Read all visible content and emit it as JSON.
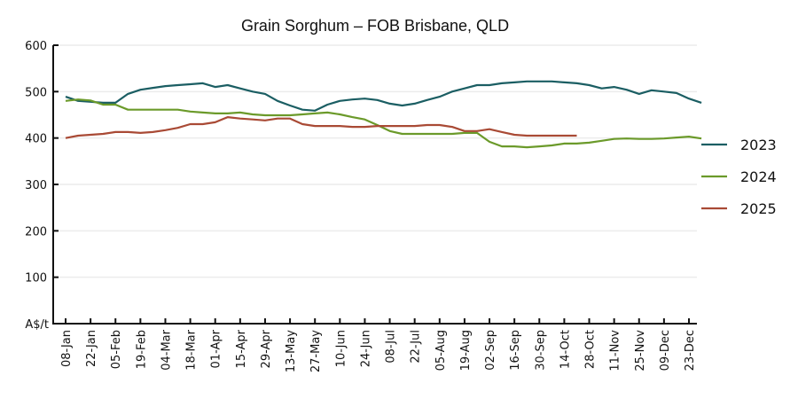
{
  "chart_data": {
    "type": "line",
    "title": "Grain Sorghum – FOB Brisbane, QLD",
    "ylabel": "A$/t",
    "xlabel": "",
    "ylim": [
      0,
      600
    ],
    "yticks": [
      100,
      200,
      300,
      400,
      500,
      600
    ],
    "ytick_labels": [
      "100",
      "200",
      "300",
      "400",
      "500",
      "600"
    ],
    "xtick_labels": [
      "08-Jan",
      "22-Jan",
      "05-Feb",
      "19-Feb",
      "04-Mar",
      "18-Mar",
      "01-Apr",
      "15-Apr",
      "29-Apr",
      "13-May",
      "27-May",
      "10-Jun",
      "24-Jun",
      "08-Jul",
      "22-Jul",
      "05-Aug",
      "19-Aug",
      "02-Sep",
      "16-Sep",
      "30-Sep",
      "14-Oct",
      "28-Oct",
      "11-Nov",
      "25-Nov",
      "09-Dec",
      "23-Dec"
    ],
    "x_unit": "week index from 08-Jan",
    "grid": true,
    "legend_position": "right",
    "series": [
      {
        "name": "2023",
        "color": "#1b5e63",
        "values": [
          489,
          480,
          478,
          476,
          476,
          495,
          504,
          508,
          512,
          514,
          516,
          518,
          510,
          514,
          507,
          500,
          495,
          480,
          470,
          461,
          459,
          472,
          480,
          483,
          485,
          482,
          474,
          470,
          474,
          482,
          489,
          500,
          507,
          514,
          514,
          518,
          520,
          522,
          522,
          522,
          520,
          518,
          514,
          507,
          510,
          504,
          495,
          503,
          500,
          497,
          485,
          476
        ]
      },
      {
        "name": "2024",
        "color": "#6b9a2a",
        "values": [
          480,
          483,
          481,
          472,
          472,
          461,
          461,
          461,
          461,
          461,
          457,
          455,
          453,
          453,
          455,
          451,
          449,
          449,
          449,
          451,
          453,
          455,
          451,
          445,
          440,
          428,
          415,
          409,
          409,
          409,
          409,
          409,
          411,
          411,
          392,
          382,
          382,
          380,
          382,
          384,
          388,
          388,
          390,
          394,
          398,
          399,
          398,
          398,
          399,
          401,
          403,
          399
        ]
      },
      {
        "name": "2025",
        "color": "#a94a35",
        "values": [
          400,
          405,
          407,
          409,
          413,
          413,
          411,
          413,
          417,
          422,
          430,
          430,
          434,
          445,
          442,
          440,
          438,
          442,
          442,
          430,
          426,
          426,
          426,
          424,
          424,
          426,
          426,
          426,
          426,
          428,
          428,
          424,
          415,
          415,
          419,
          413,
          407,
          405,
          405,
          405,
          405,
          405
        ]
      }
    ]
  }
}
